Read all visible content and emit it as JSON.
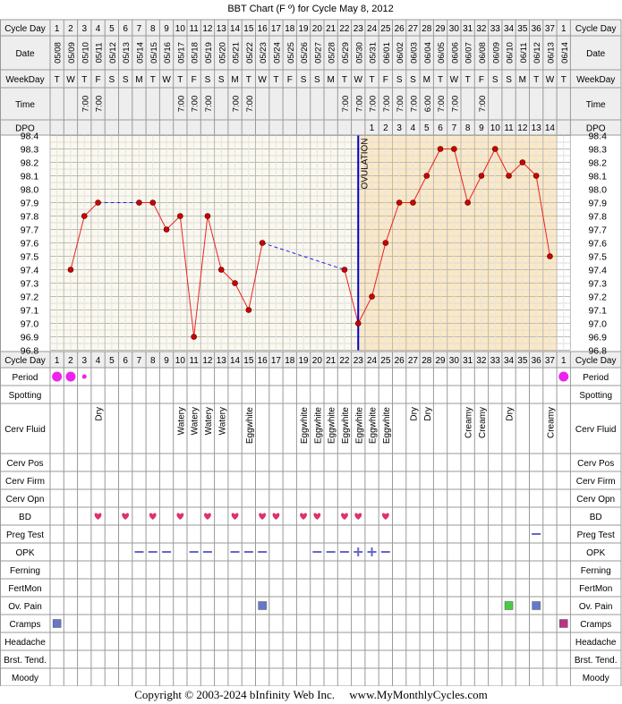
{
  "footer": {
    "copyright": "Copyright © 2003-2024 bInfinity Web Inc.",
    "site": "www.MyMonthlyCycles.com"
  },
  "colors": {
    "grid": "#999999",
    "header_bg": "#eeeeee",
    "pre_bg": "#fbf9ee",
    "post_bg": "#fbe8c4",
    "temp_line": "#ee2222",
    "temp_marker": "#cc0000",
    "coverline": "#2222ee",
    "ovulation_line": "#0000cc",
    "period": "#ee22ee",
    "bd_heart": "#dd3366",
    "opk": "#6666cc",
    "ov_pain_blue": "#6677cc",
    "ov_pain_green": "#44cc44",
    "cramps_blue": "#6677cc",
    "cramps_magenta": "#bb3388"
  },
  "chart_data": {
    "type": "line",
    "title": "BBT Chart (F º) for Cycle May 8, 2012",
    "row_labels": {
      "cycle_day": "Cycle Day",
      "date": "Date",
      "weekday": "WeekDay",
      "time": "Time",
      "dpo": "DPO",
      "period": "Period",
      "spotting": "Spotting",
      "cerv_fluid": "Cerv Fluid",
      "cerv_pos": "Cerv Pos",
      "cerv_firm": "Cerv Firm",
      "cerv_opn": "Cerv Opn",
      "bd": "BD",
      "preg_test": "Preg Test",
      "opk": "OPK",
      "ferning": "Ferning",
      "fertmon": "FertMon",
      "ov_pain": "Ov. Pain",
      "cramps": "Cramps",
      "headache": "Headache",
      "brst_tend": "Brst. Tend.",
      "moody": "Moody"
    },
    "cycle_days": [
      "1",
      "2",
      "3",
      "4",
      "5",
      "6",
      "7",
      "8",
      "9",
      "10",
      "11",
      "12",
      "13",
      "14",
      "15",
      "16",
      "17",
      "18",
      "19",
      "20",
      "21",
      "22",
      "23",
      "24",
      "25",
      "26",
      "27",
      "28",
      "29",
      "30",
      "31",
      "32",
      "33",
      "34",
      "35",
      "36",
      "37",
      "1"
    ],
    "dates": [
      "05/08",
      "05/09",
      "05/10",
      "05/11",
      "05/12",
      "05/13",
      "05/14",
      "05/15",
      "05/16",
      "05/17",
      "05/18",
      "05/19",
      "05/20",
      "05/21",
      "05/22",
      "05/23",
      "05/24",
      "05/25",
      "05/26",
      "05/27",
      "05/28",
      "05/29",
      "05/30",
      "05/31",
      "06/01",
      "06/02",
      "06/03",
      "06/04",
      "06/05",
      "06/06",
      "06/07",
      "06/08",
      "06/09",
      "06/10",
      "06/11",
      "06/12",
      "06/13",
      "06/14"
    ],
    "weekdays": [
      "T",
      "W",
      "T",
      "F",
      "S",
      "S",
      "M",
      "T",
      "W",
      "T",
      "F",
      "S",
      "S",
      "M",
      "T",
      "W",
      "T",
      "F",
      "S",
      "S",
      "M",
      "T",
      "W",
      "T",
      "F",
      "S",
      "S",
      "M",
      "T",
      "W",
      "T",
      "F",
      "S",
      "S",
      "M",
      "T",
      "W",
      "T"
    ],
    "times": [
      "",
      "",
      "7:00",
      "7:00",
      "",
      "",
      "",
      "",
      "",
      "7:00",
      "7:00",
      "7:00",
      "",
      "7:00",
      "7:00",
      "",
      "",
      "",
      "",
      "",
      "",
      "7:00",
      "7:00",
      "7:00",
      "7:00",
      "7:00",
      "7:00",
      "6:00",
      "7:00",
      "7:00",
      "",
      "7:00",
      "",
      "",
      "",
      "",
      "",
      ""
    ],
    "dpo": [
      "",
      "",
      "",
      "",
      "",
      "",
      "",
      "",
      "",
      "",
      "",
      "",
      "",
      "",
      "",
      "",
      "",
      "",
      "",
      "",
      "",
      "",
      "",
      "1",
      "2",
      "3",
      "4",
      "5",
      "6",
      "7",
      "8",
      "9",
      "10",
      "11",
      "12",
      "13",
      "14",
      ""
    ],
    "y_ticks": [
      "98.4",
      "98.3",
      "98.2",
      "98.1",
      "98.0",
      "97.9",
      "97.8",
      "97.7",
      "97.6",
      "97.5",
      "97.4",
      "97.3",
      "97.2",
      "97.1",
      "97.0",
      "96.9",
      "96.8"
    ],
    "ylim": [
      96.8,
      98.4
    ],
    "temps": [
      null,
      97.4,
      97.8,
      97.9,
      null,
      null,
      97.9,
      97.9,
      97.7,
      97.8,
      96.9,
      97.8,
      97.4,
      97.3,
      97.1,
      97.6,
      null,
      null,
      null,
      null,
      null,
      97.4,
      97.0,
      97.2,
      97.6,
      97.9,
      97.9,
      98.1,
      98.3,
      98.3,
      97.9,
      98.1,
      98.3,
      98.1,
      98.2,
      98.1,
      97.5,
      null
    ],
    "ovulation_day": 23,
    "ovulation_label": "OVULATION",
    "cerv_fluid": [
      "",
      "",
      "",
      "Dry",
      "",
      "",
      "",
      "",
      "",
      "Watery",
      "Watery",
      "Watery",
      "Watery",
      "",
      "Eggwhite",
      "",
      "",
      "",
      "Eggwhite",
      "Eggwhite",
      "Eggwhite",
      "Eggwhite",
      "Eggwhite",
      "Eggwhite",
      "Eggwhite",
      "",
      "Dry",
      "Dry",
      "",
      "",
      "Creamy",
      "Creamy",
      "",
      "Dry",
      "",
      "",
      "Creamy",
      ""
    ],
    "period": [
      "large",
      "large",
      "small",
      "",
      "",
      "",
      "",
      "",
      "",
      "",
      "",
      "",
      "",
      "",
      "",
      "",
      "",
      "",
      "",
      "",
      "",
      "",
      "",
      "",
      "",
      "",
      "",
      "",
      "",
      "",
      "",
      "",
      "",
      "",
      "",
      "",
      "",
      "large"
    ],
    "bd_days": [
      4,
      6,
      8,
      10,
      12,
      14,
      16,
      17,
      19,
      20,
      22,
      23,
      25
    ],
    "preg_test_days": [
      36
    ],
    "opk": {
      "neg_days": [
        7,
        8,
        9,
        11,
        12,
        14,
        15,
        16,
        20,
        21,
        22,
        25
      ],
      "pos_days": [
        23,
        24
      ]
    },
    "ov_pain": [
      {
        "day": 16,
        "color": "blue"
      },
      {
        "day": 34,
        "color": "green"
      },
      {
        "day": 36,
        "color": "blue"
      }
    ],
    "cramps": [
      {
        "day": 1,
        "color": "blue"
      },
      {
        "day": 38,
        "color": "magenta"
      }
    ]
  }
}
